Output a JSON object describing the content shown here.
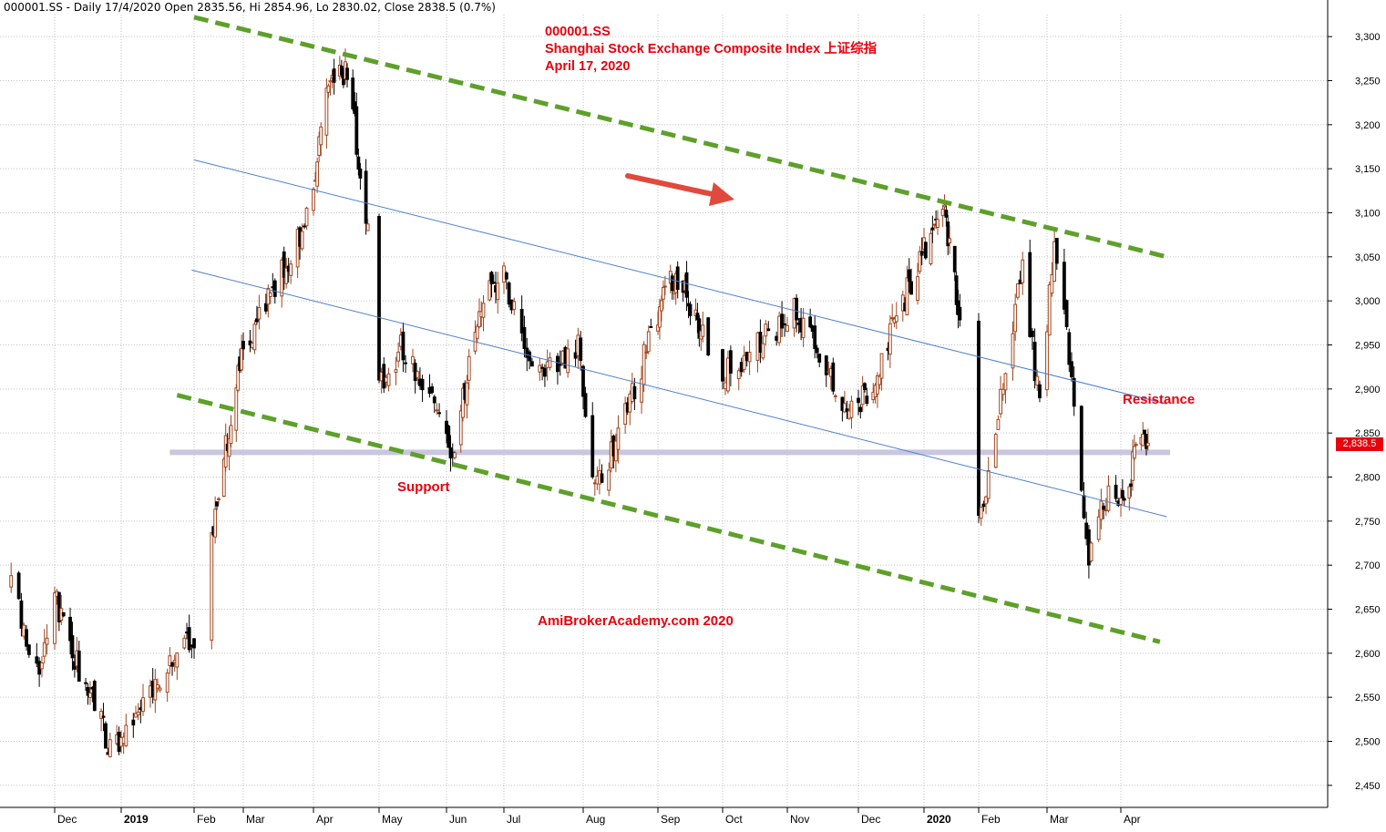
{
  "header": {
    "text": "000001.SS - Daily 17/4/2020 Open 2835.56, Hi 2854.96, Lo 2830.02, Close 2838.5 (0.7%)"
  },
  "title": {
    "ticker": "000001.SS",
    "name": "Shanghai Stock Exchange Composite Index   上证综指",
    "date": "April 17, 2020"
  },
  "annotations": {
    "support": "Support",
    "resistance": "Resistance",
    "watermark": "AmiBrokerAcademy.com   2020",
    "last_price_tag": "2,838.5"
  },
  "colors": {
    "up_candle": "#a0461e",
    "down_candle": "#000000",
    "channel_dashed": "#5ea02a",
    "channel_thin": "#4d7fd0",
    "support_band": "#c9c6e0",
    "arrow": "#e04a3c",
    "label_red": "#e8000b"
  },
  "chart_data": {
    "type": "candlestick",
    "title": "000001.SS Shanghai Stock Exchange Composite Index 上证综指 April 17, 2020",
    "xlabel": "",
    "ylabel": "",
    "ylim": [
      2425,
      3325
    ],
    "y_ticks": [
      "2,450",
      "2,500",
      "2,550",
      "2,600",
      "2,650",
      "2,700",
      "2,750",
      "2,800",
      "2,850",
      "2,900",
      "2,950",
      "3,000",
      "3,050",
      "3,100",
      "3,150",
      "3,200",
      "3,250",
      "3,300"
    ],
    "y_tick_values": [
      2450,
      2500,
      2550,
      2600,
      2650,
      2700,
      2750,
      2800,
      2850,
      2900,
      2950,
      3000,
      3050,
      3100,
      3150,
      3200,
      3250,
      3300
    ],
    "x_ticks": [
      "Dec",
      "2019",
      "Feb",
      "Mar",
      "Apr",
      "May",
      "Jun",
      "Jul",
      "Aug",
      "Sep",
      "Oct",
      "Nov",
      "Dec",
      "2020",
      "Feb",
      "Mar",
      "Apr"
    ],
    "x_tick_dates": [
      "2018-12-03",
      "2019-01-02",
      "2019-02-01",
      "2019-03-01",
      "2019-04-01",
      "2019-05-06",
      "2019-06-03",
      "2019-07-01",
      "2019-08-01",
      "2019-09-02",
      "2019-10-08",
      "2019-11-01",
      "2019-12-02",
      "2020-01-02",
      "2020-02-03",
      "2020-03-02",
      "2020-04-01"
    ],
    "bold_x_ticks": [
      "2019",
      "2020"
    ],
    "grid": true,
    "last": {
      "date": "2020-04-17",
      "open": 2835.56,
      "high": 2854.96,
      "low": 2830.02,
      "close": 2838.5,
      "change_pct": 0.7
    },
    "anchors": [
      {
        "date": "2018-11-16",
        "close": 2680
      },
      {
        "date": "2018-11-26",
        "close": 2580
      },
      {
        "date": "2018-12-03",
        "close": 2660
      },
      {
        "date": "2018-12-28",
        "close": 2490
      },
      {
        "date": "2019-01-04",
        "close": 2515
      },
      {
        "date": "2019-02-01",
        "close": 2620
      },
      {
        "date": "2019-02-28",
        "close": 2940
      },
      {
        "date": "2019-03-29",
        "close": 3090
      },
      {
        "date": "2019-04-08",
        "close": 3245
      },
      {
        "date": "2019-04-19",
        "close": 3265
      },
      {
        "date": "2019-04-30",
        "close": 3080
      },
      {
        "date": "2019-05-06",
        "close": 2905
      },
      {
        "date": "2019-05-16",
        "close": 2950
      },
      {
        "date": "2019-06-06",
        "close": 2830
      },
      {
        "date": "2019-06-20",
        "close": 2990
      },
      {
        "date": "2019-07-01",
        "close": 3040
      },
      {
        "date": "2019-07-10",
        "close": 2920
      },
      {
        "date": "2019-07-30",
        "close": 2945
      },
      {
        "date": "2019-08-06",
        "close": 2780
      },
      {
        "date": "2019-08-20",
        "close": 2880
      },
      {
        "date": "2019-09-06",
        "close": 3010
      },
      {
        "date": "2019-09-12",
        "close": 3030
      },
      {
        "date": "2019-10-08",
        "close": 2915
      },
      {
        "date": "2019-10-25",
        "close": 2960
      },
      {
        "date": "2019-11-05",
        "close": 2990
      },
      {
        "date": "2019-11-29",
        "close": 2870
      },
      {
        "date": "2019-12-10",
        "close": 2915
      },
      {
        "date": "2019-12-31",
        "close": 3050
      },
      {
        "date": "2020-01-14",
        "close": 3105
      },
      {
        "date": "2020-01-23",
        "close": 2975
      },
      {
        "date": "2020-02-03",
        "close": 2745
      },
      {
        "date": "2020-02-21",
        "close": 3040
      },
      {
        "date": "2020-02-28",
        "close": 2880
      },
      {
        "date": "2020-03-05",
        "close": 3070
      },
      {
        "date": "2020-03-12",
        "close": 2920
      },
      {
        "date": "2020-03-19",
        "close": 2700
      },
      {
        "date": "2020-03-25",
        "close": 2780
      },
      {
        "date": "2020-04-02",
        "close": 2760
      },
      {
        "date": "2020-04-09",
        "close": 2825
      },
      {
        "date": "2020-04-17",
        "close": 2838.5
      }
    ],
    "trend_lines": [
      {
        "name": "upper channel",
        "style": "dashed-green",
        "from": {
          "date": "2019-02-01",
          "close": 3322
        },
        "to": {
          "date": "2020-04-28",
          "close": 3050
        }
      },
      {
        "name": "lower channel",
        "style": "dashed-green",
        "from": {
          "date": "2019-01-25",
          "close": 2893
        },
        "to": {
          "date": "2020-04-24",
          "close": 2613
        }
      },
      {
        "name": "inner upper",
        "style": "thin-blue",
        "from": {
          "date": "2019-02-01",
          "close": 3160
        },
        "to": {
          "date": "2020-04-28",
          "close": 2883
        }
      },
      {
        "name": "inner lower",
        "style": "thin-blue",
        "from": {
          "date": "2019-01-31",
          "close": 3035
        },
        "to": {
          "date": "2020-04-28",
          "close": 2755
        }
      },
      {
        "name": "support band",
        "style": "band",
        "from": {
          "date": "2019-01-22",
          "close": 2828
        },
        "to": {
          "date": "2020-04-30",
          "close": 2828
        }
      }
    ]
  }
}
